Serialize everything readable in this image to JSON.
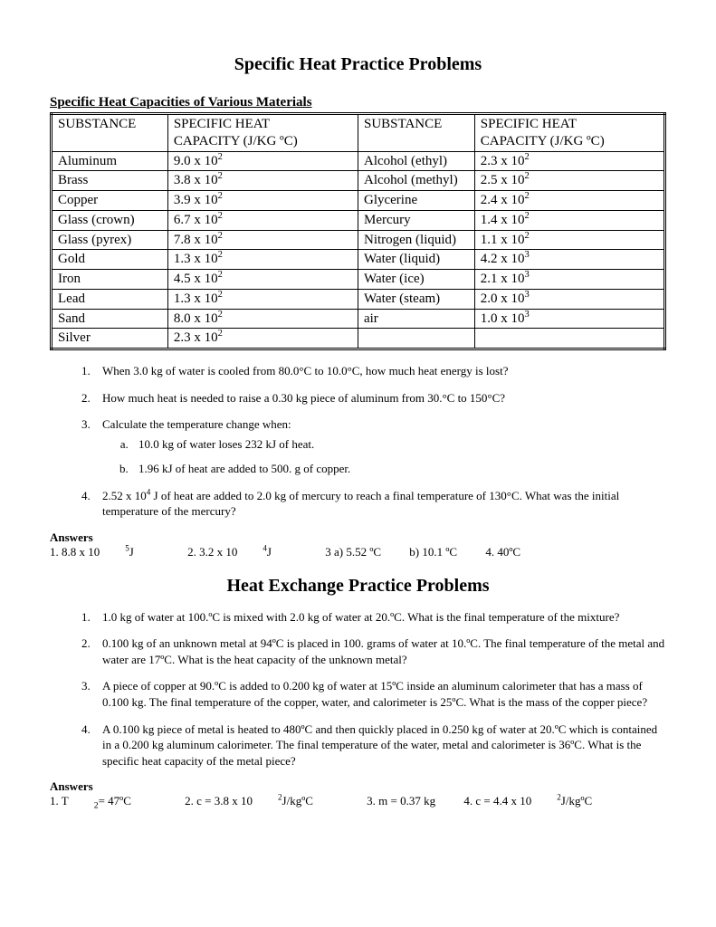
{
  "title1": "Specific Heat Practice Problems",
  "table_caption": "Specific Heat Capacities of Various Materials",
  "headers": {
    "sub": "SUBSTANCE",
    "cap1": "SPECIFIC HEAT",
    "cap2": "CAPACITY (J/KG ºC)"
  },
  "rows": [
    {
      "s1": "Aluminum",
      "c1": "9.0 x 10",
      "e1": "2",
      "s2": "Alcohol (ethyl)",
      "c2": "2.3 x 10",
      "e2": "2"
    },
    {
      "s1": "Brass",
      "c1": "3.8 x 10",
      "e1": "2",
      "s2": "Alcohol (methyl)",
      "c2": "2.5 x 10",
      "e2": "2"
    },
    {
      "s1": "Copper",
      "c1": "3.9 x 10",
      "e1": "2",
      "s2": "Glycerine",
      "c2": "2.4 x 10",
      "e2": "2"
    },
    {
      "s1": "Glass (crown)",
      "c1": "6.7 x 10",
      "e1": "2",
      "s2": "Mercury",
      "c2": "1.4 x 10",
      "e2": "2"
    },
    {
      "s1": "Glass (pyrex)",
      "c1": "7.8 x 10",
      "e1": "2",
      "s2": "Nitrogen (liquid)",
      "c2": "1.1 x 10",
      "e2": "2"
    },
    {
      "s1": "Gold",
      "c1": "1.3 x 10",
      "e1": "2",
      "s2": "Water (liquid)",
      "c2": "4.2 x 10",
      "e2": "3"
    },
    {
      "s1": "Iron",
      "c1": "4.5 x 10",
      "e1": "2",
      "s2": "Water (ice)",
      "c2": "2.1 x 10",
      "e2": "3"
    },
    {
      "s1": "Lead",
      "c1": "1.3 x 10",
      "e1": "2",
      "s2": "Water (steam)",
      "c2": "2.0 x 10",
      "e2": "3"
    },
    {
      "s1": "Sand",
      "c1": "8.0 x 10",
      "e1": "2",
      "s2": "air",
      "c2": "1.0 x 10",
      "e2": "3"
    },
    {
      "s1": "Silver",
      "c1": "2.3 x 10",
      "e1": "2",
      "s2": "",
      "c2": "",
      "e2": ""
    }
  ],
  "problems1": {
    "q1": "When 3.0 kg of water is cooled from 80.0°C to 10.0°C, how much heat energy is lost?",
    "q2": "How much heat is needed to raise a 0.30 kg piece of aluminum from 30.°C to 150°C?",
    "q3": "Calculate the temperature change when:",
    "q3a": "10.0 kg of water loses 232 kJ of heat.",
    "q3b": "1.96 kJ of heat are added to 500. g of copper.",
    "q4a": "2.52 x 10",
    "q4exp": "4",
    "q4b": " J of heat are added to 2.0 kg of mercury to reach a final temperature of 130°C.  What was the initial temperature of the mercury?"
  },
  "answers_label": "Answers",
  "answers1": {
    "a1pre": "1.  8.8 x 10",
    "a1exp": "5",
    "a1post": " J",
    "a2pre": "2.  3.2 x 10",
    "a2exp": "4",
    "a2post": " J",
    "a3a": "3 a)  5.52 ºC",
    "a3b": "b)  10.1 ºC",
    "a4": "4. 40ºC"
  },
  "title2": "Heat Exchange Practice Problems",
  "problems2": {
    "q1": "1.0 kg of water at 100.ºC is mixed with 2.0 kg of water at 20.ºC.  What is the final temperature of the mixture?",
    "q2": "0.100 kg of an unknown metal at 94ºC is placed in 100. grams of water at 10.ºC.  The final temperature of the metal and water are 17ºC.  What is the heat capacity of the unknown metal?",
    "q3": "A piece of copper at 90.ºC is added to 0.200 kg of water at 15ºC inside an aluminum calorimeter that has a mass of 0.100 kg.  The final temperature of the copper, water, and calorimeter is 25ºC.  What is the mass of the copper piece?",
    "q4": "A 0.100 kg piece of metal is heated to 480ºC and then quickly placed in 0.250 kg of water at 20.ºC which is contained in a 0.200 kg aluminum calorimeter.  The final temperature of the water, metal and calorimeter is 36ºC.  What is the specific heat capacity of the metal piece?"
  },
  "answers2": {
    "a1pre": "1. T",
    "a1sub": "2",
    "a1post": " = 47ºC",
    "a2pre": "2.  c = 3.8 x 10",
    "a2exp": "2",
    "a2post": " J/kgºC",
    "a3": "3.  m = 0.37 kg",
    "a4pre": "4.  c = 4.4 x 10",
    "a4exp": "2",
    "a4post": " J/kgºC"
  }
}
